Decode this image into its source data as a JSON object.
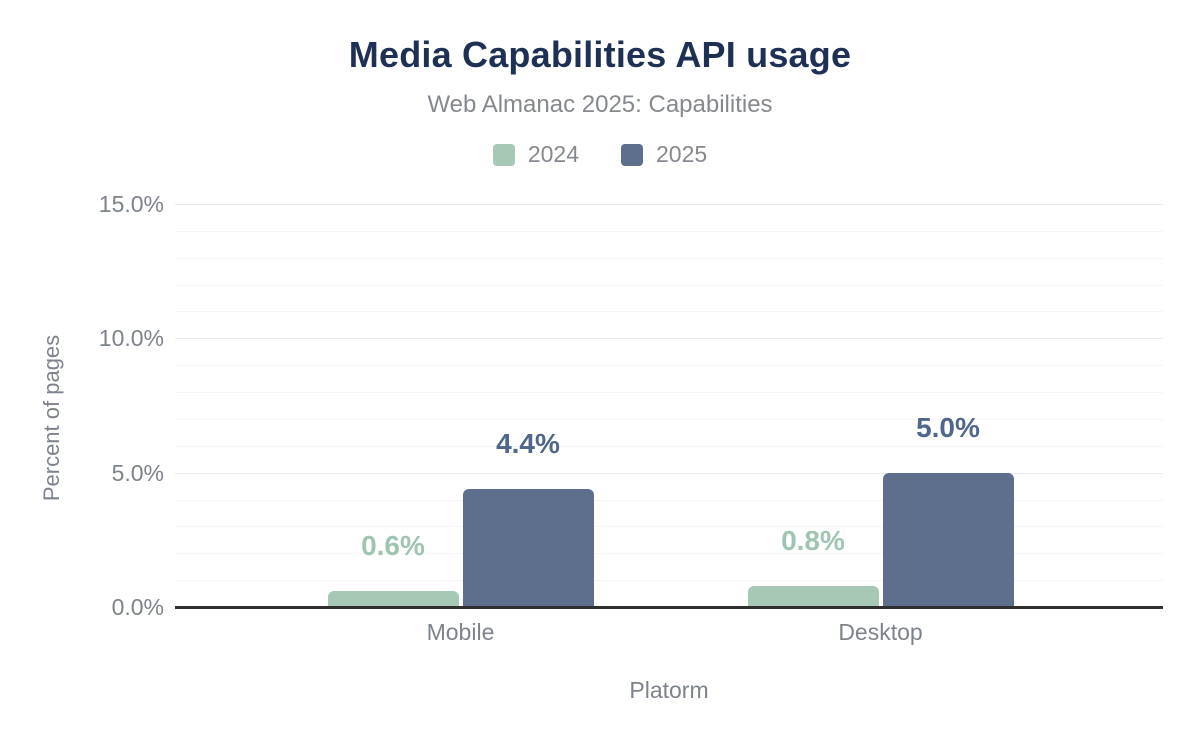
{
  "header": {
    "title": "Media Capabilities API usage",
    "subtitle": "Web Almanac 2025: Capabilities"
  },
  "colors": {
    "title_text": "#1f3055",
    "muted_text": "#85898f",
    "axis_text": "#7d838d",
    "grid_minor": "#f5f5f6",
    "grid_major": "#e9eaeb",
    "axis_line": "#2f2f2f",
    "series_2024": "#a6c8b5",
    "series_2025": "#5e6f8e",
    "value_label_2024": "#9fc4b0",
    "value_label_2025": "#50668c"
  },
  "chart_data": {
    "type": "bar",
    "title": "Media Capabilities API usage",
    "subtitle": "Web Almanac 2025: Capabilities",
    "categories": [
      "Mobile",
      "Desktop"
    ],
    "series": [
      {
        "name": "2024",
        "values": [
          0.6,
          0.8
        ],
        "value_labels": [
          "0.6%",
          "0.8%"
        ],
        "color": "#a6c8b5",
        "label_color": "#9fc4b0"
      },
      {
        "name": "2025",
        "values": [
          4.4,
          5.0
        ],
        "value_labels": [
          "4.4%",
          "5.0%"
        ],
        "color": "#5e6f8e",
        "label_color": "#50668c"
      }
    ],
    "xlabel": "Platorm",
    "ylabel": "Percent of pages",
    "ylim": [
      0,
      15
    ],
    "yticks": [
      0,
      5,
      10,
      15
    ],
    "ytick_labels": [
      "0.0%",
      "5.0%",
      "10.0%",
      "15.0%"
    ],
    "grid": "horizontal minor gridlines every 1%, major every 5%",
    "legend_position": "top center"
  }
}
